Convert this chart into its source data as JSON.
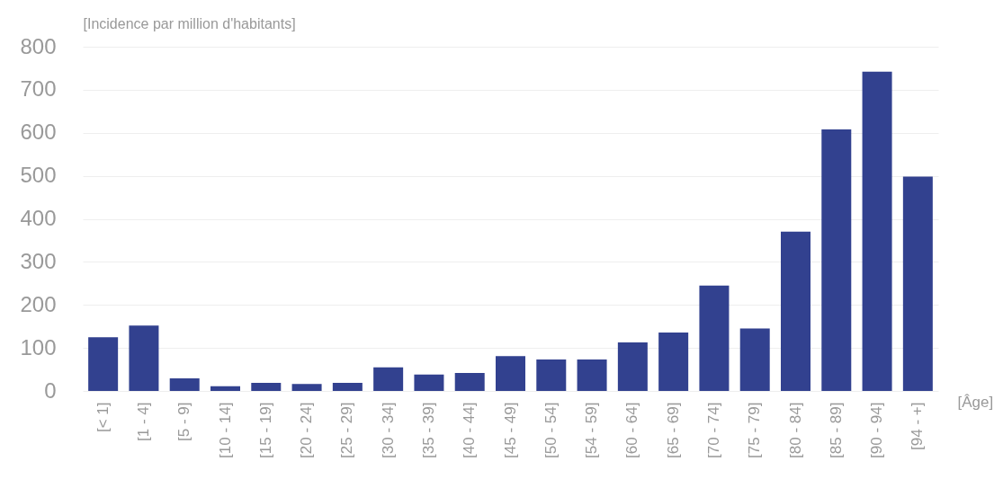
{
  "chart_data": {
    "type": "bar",
    "ylabel": "[Incidence par million d'habitants]",
    "xlabel": "[Âge]",
    "categories": [
      "[< 1]",
      "[1 - 4]",
      "[5 - 9]",
      "[10 - 14]",
      "[15 - 19]",
      "[20 - 24]",
      "[25 - 29]",
      "[30 - 34]",
      "[35 - 39]",
      "[40 - 44]",
      "[45 - 49]",
      "[50 - 54]",
      "[54 - 59]",
      "[60 - 64]",
      "[65 - 69]",
      "[70 - 74]",
      "[75 - 79]",
      "[80 - 84]",
      "[85 - 89]",
      "[90 - 94]",
      "[94 - +]"
    ],
    "values": [
      125,
      152,
      29,
      11,
      19,
      16,
      19,
      55,
      38,
      42,
      81,
      73,
      73,
      113,
      136,
      245,
      145,
      370,
      608,
      742,
      498
    ],
    "color": "#32418f",
    "ylim": [
      0,
      800
    ],
    "yticks": [
      0,
      100,
      200,
      300,
      400,
      500,
      600,
      700,
      800
    ],
    "grid": "y"
  }
}
